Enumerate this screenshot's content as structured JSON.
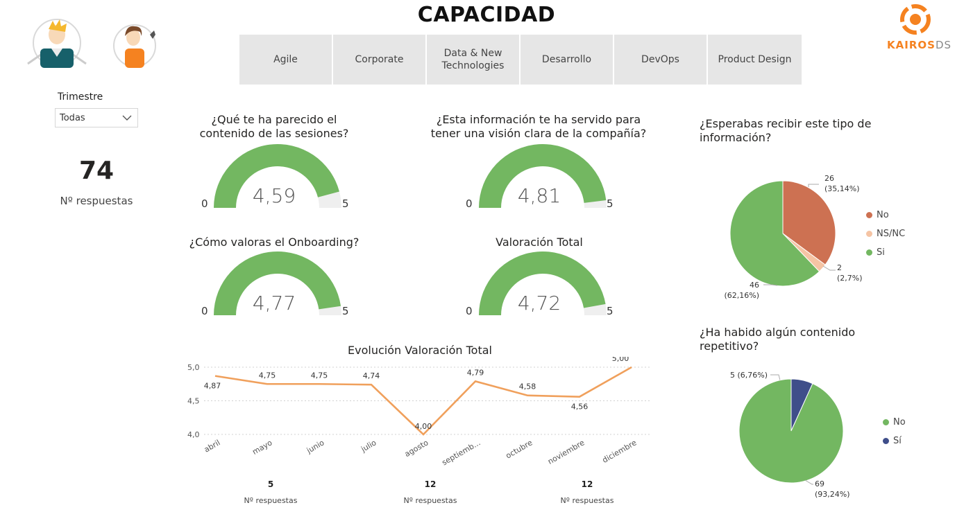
{
  "page": {
    "title": "CAPACIDAD"
  },
  "logo": {
    "text_left": "KAIR",
    "text_mid": "O",
    "text_right": "S",
    "text_ds": "DS"
  },
  "tabs": [
    "Agile",
    "Corporate",
    "Data & New\nTechnologies",
    "Desarrollo",
    "DevOps",
    "Product Design"
  ],
  "slicer": {
    "label": "Trimestre",
    "value": "Todas"
  },
  "kpi": {
    "value": "74",
    "label": "Nº respuestas"
  },
  "colors": {
    "green": "#73b761",
    "track": "#efefef",
    "orange": "#f0a05c",
    "no_brown": "#cd7152",
    "nsnc": "#f5c4a4",
    "navy": "#3f4e8a"
  },
  "gauges": [
    {
      "title": "¿Qué te ha parecido el\ncontenido de las sesiones?",
      "value_label": "4,59",
      "value": 4.59,
      "min": "0",
      "max": "5"
    },
    {
      "title": "¿Esta información te ha servido para\ntener una visión clara de la compañía?",
      "value_label": "4,81",
      "value": 4.81,
      "min": "0",
      "max": "5"
    },
    {
      "title": "¿Cómo valoras el Onboarding?",
      "value_label": "4,77",
      "value": 4.77,
      "min": "0",
      "max": "5"
    },
    {
      "title": "Valoración Total",
      "value_label": "4,72",
      "value": 4.72,
      "min": "0",
      "max": "5"
    }
  ],
  "line_footer": [
    {
      "num": "5",
      "label": "Nº respuestas"
    },
    {
      "num": "12",
      "label": "Nº respuestas"
    },
    {
      "num": "12",
      "label": "Nº respuestas"
    }
  ],
  "chart_data": [
    {
      "type": "line",
      "title": "Evolución Valoración Total",
      "categories": [
        "abril",
        "mayo",
        "junio",
        "julio",
        "agosto",
        "septiemb...",
        "octubre",
        "noviembre",
        "diciembre"
      ],
      "values": [
        4.87,
        4.75,
        4.75,
        4.74,
        4.0,
        4.79,
        4.58,
        4.56,
        5.0
      ],
      "value_labels": [
        "4,87",
        "4,75",
        "4,75",
        "4,74",
        "4,00",
        "4,79",
        "4,58",
        "4,56",
        "5,00"
      ],
      "yticks": [
        "5,0",
        "4,5",
        "4,0"
      ],
      "ylim": [
        4.0,
        5.0
      ],
      "color": "#f0a05c"
    },
    {
      "type": "pie",
      "title": "¿Esperabas recibir este tipo de\ninformación?",
      "slices": [
        {
          "name": "No",
          "value": 26,
          "label": "26\n(35,14%)",
          "color": "#cd7152"
        },
        {
          "name": "NS/NC",
          "value": 2,
          "label": "2\n(2,7%)",
          "color": "#f5c4a4"
        },
        {
          "name": "Si",
          "value": 46,
          "label": "46\n(62,16%)",
          "color": "#73b761"
        }
      ],
      "legend": "right"
    },
    {
      "type": "pie",
      "title": "¿Ha habido algún contenido\nrepetitivo?",
      "slices": [
        {
          "name": "Sí",
          "value": 5,
          "label": "5 (6,76%)",
          "color": "#3f4e8a"
        },
        {
          "name": "No",
          "value": 69,
          "label": "69\n(93,24%)",
          "color": "#73b761"
        }
      ],
      "legend_order": [
        "No",
        "Sí"
      ],
      "legend": "right"
    }
  ]
}
